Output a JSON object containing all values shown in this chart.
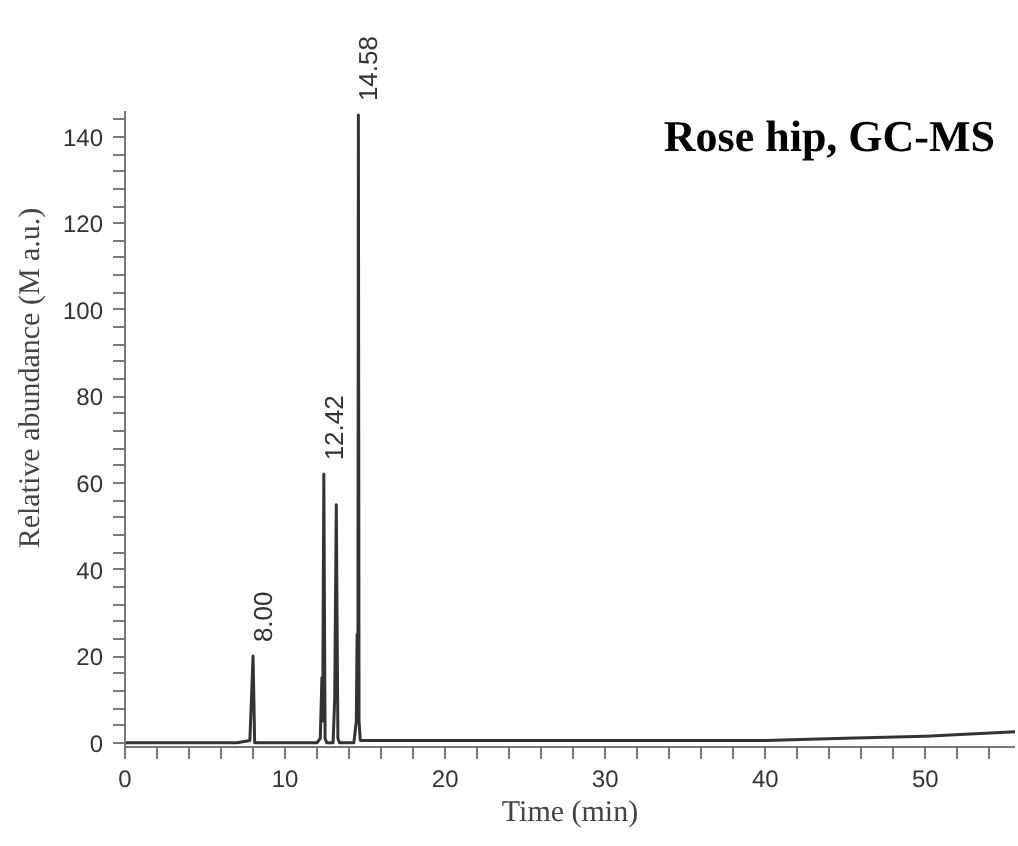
{
  "chart_data": {
    "type": "line",
    "title": "Rose hip, GC-MS",
    "xlabel": "Time (min)",
    "ylabel": "Relative abundance (M a.u.)",
    "xlim": [
      0,
      55.6
    ],
    "ylim": [
      -1,
      146
    ],
    "xticks": [
      0,
      {
        "value": 2,
        "label": null
      },
      {
        "value": 4,
        "label": null
      },
      {
        "value": 6,
        "label": null
      },
      {
        "value": 8,
        "label": null
      },
      10,
      {
        "value": 12,
        "label": null
      },
      {
        "value": 14,
        "label": null
      },
      {
        "value": 16,
        "label": null
      },
      {
        "value": 18,
        "label": null
      },
      20,
      {
        "value": 22,
        "label": null
      },
      {
        "value": 24,
        "label": null
      },
      {
        "value": 26,
        "label": null
      },
      {
        "value": 28,
        "label": null
      },
      30,
      {
        "value": 32,
        "label": null
      },
      {
        "value": 34,
        "label": null
      },
      {
        "value": 36,
        "label": null
      },
      {
        "value": 38,
        "label": null
      },
      40,
      {
        "value": 42,
        "label": null
      },
      {
        "value": 44,
        "label": null
      },
      {
        "value": 46,
        "label": null
      },
      {
        "value": 48,
        "label": null
      },
      50,
      {
        "value": 52,
        "label": null
      },
      {
        "value": 54,
        "label": null
      }
    ],
    "yticks": [
      0,
      {
        "value": 4,
        "label": null
      },
      {
        "value": 8,
        "label": null
      },
      {
        "value": 12,
        "label": null
      },
      {
        "value": 16,
        "label": null
      },
      20,
      {
        "value": 24,
        "label": null
      },
      {
        "value": 28,
        "label": null
      },
      {
        "value": 32,
        "label": null
      },
      {
        "value": 36,
        "label": null
      },
      40,
      {
        "value": 44,
        "label": null
      },
      {
        "value": 48,
        "label": null
      },
      {
        "value": 52,
        "label": null
      },
      {
        "value": 56,
        "label": null
      },
      60,
      {
        "value": 64,
        "label": null
      },
      {
        "value": 68,
        "label": null
      },
      {
        "value": 72,
        "label": null
      },
      {
        "value": 76,
        "label": null
      },
      80,
      {
        "value": 84,
        "label": null
      },
      {
        "value": 88,
        "label": null
      },
      {
        "value": 92,
        "label": null
      },
      {
        "value": 96,
        "label": null
      },
      100,
      {
        "value": 104,
        "label": null
      },
      {
        "value": 108,
        "label": null
      },
      {
        "value": 112,
        "label": null
      },
      {
        "value": 116,
        "label": null
      },
      120,
      {
        "value": 124,
        "label": null
      },
      {
        "value": 128,
        "label": null
      },
      {
        "value": 132,
        "label": null
      },
      {
        "value": 136,
        "label": null
      },
      140,
      {
        "value": 144,
        "label": null
      }
    ],
    "grid": false,
    "marker": "none",
    "line_style": "solid",
    "series": [
      {
        "color": "#333333",
        "x": [
          0,
          7.0,
          7.8,
          7.9,
          8.0,
          8.1,
          8.3,
          12.0,
          12.2,
          12.3,
          12.35,
          12.42,
          12.5,
          12.6,
          13.0,
          13.1,
          13.2,
          13.3,
          13.4,
          14.3,
          14.45,
          14.5,
          14.55,
          14.58,
          14.62,
          14.7,
          20,
          30,
          40,
          45,
          50,
          55.6
        ],
        "values": [
          0,
          0,
          0.5,
          10,
          20,
          0,
          0,
          0,
          1,
          15,
          5,
          62,
          1,
          0,
          0,
          10,
          55,
          1,
          0,
          0,
          5,
          25,
          10,
          145,
          5,
          0.5,
          0.5,
          0.5,
          0.5,
          1,
          1.5,
          2.5
        ]
      }
    ],
    "annotations": [
      {
        "text": "8.00",
        "x": 8.0,
        "y": 20
      },
      {
        "text": "12.42",
        "x": 12.42,
        "y": 62
      },
      {
        "text": "14.58",
        "x": 14.58,
        "y": 145
      }
    ]
  }
}
